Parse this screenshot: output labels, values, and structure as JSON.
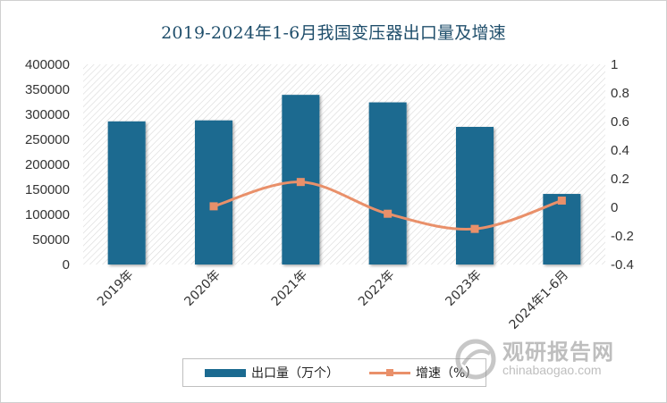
{
  "chart_data": {
    "type": "bar+line",
    "title": "2019-2024年1-6月我国变压器出口量及增速",
    "categories": [
      "2019年",
      "2020年",
      "2021年",
      "2022年",
      "2023年",
      "2024年1-6月"
    ],
    "series": [
      {
        "name": "出口量（万个）",
        "type": "bar",
        "axis": "left",
        "values": [
          286000,
          288000,
          339000,
          324000,
          275000,
          141000
        ],
        "color": "#1b6a90"
      },
      {
        "name": "增速（%）",
        "type": "line",
        "axis": "right",
        "values": [
          null,
          0.007,
          0.177,
          -0.045,
          -0.151,
          0.047
        ],
        "color": "#e9906a"
      }
    ],
    "left_axis": {
      "ylim": [
        0,
        400000
      ],
      "ticks": [
        0,
        50000,
        100000,
        150000,
        200000,
        250000,
        300000,
        350000,
        400000
      ],
      "tick_labels": [
        "0",
        "50000",
        "100000",
        "150000",
        "200000",
        "250000",
        "300000",
        "350000",
        "400000"
      ]
    },
    "right_axis": {
      "ylim": [
        -0.4,
        1
      ],
      "ticks": [
        -0.4,
        -0.2,
        0,
        0.2,
        0.4,
        0.6,
        0.8,
        1
      ],
      "tick_labels": [
        "-0.4",
        "-0.2",
        "0",
        "0.2",
        "0.4",
        "0.6",
        "0.8",
        "1"
      ]
    },
    "legend_position": "bottom",
    "grid": false
  },
  "legend": {
    "bar_label": "出口量（万个）",
    "line_label": "增速（%）"
  },
  "watermark": {
    "cn": "观研报告网",
    "en": "chinabaogao.com"
  }
}
